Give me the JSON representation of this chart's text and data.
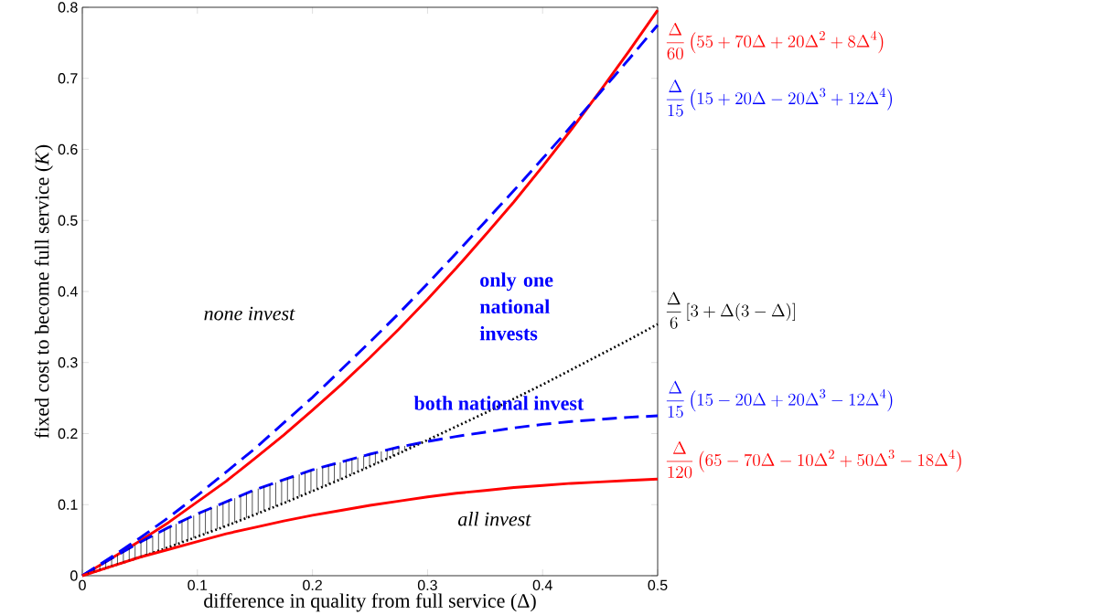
{
  "chart_data": {
    "type": "line",
    "xlabel": "difference in quality from full service (Δ)",
    "ylabel": "fixed cost to become full service (*K*)",
    "x": [
      0,
      0.025,
      0.05,
      0.075,
      0.1,
      0.125,
      0.15,
      0.175,
      0.2,
      0.225,
      0.25,
      0.275,
      0.3,
      0.325,
      0.35,
      0.375,
      0.4,
      0.425,
      0.45,
      0.475,
      0.5
    ],
    "series": [
      {
        "name": "\\frac{\\Delta}{60}\\left(55+70\\Delta+20\\Delta^2+8\\Delta^4\\right)",
        "color": "#ff0000",
        "line_style": "solid",
        "values": [
          0,
          0.024,
          0.049,
          0.075,
          0.104,
          0.133,
          0.165,
          0.198,
          0.233,
          0.269,
          0.307,
          0.347,
          0.389,
          0.433,
          0.479,
          0.526,
          0.576,
          0.628,
          0.682,
          0.738,
          0.796
        ]
      },
      {
        "name": "\\frac{\\Delta}{15}\\left(15+20\\Delta-20\\Delta^3+12\\Delta^4\\right)",
        "color": "#0000ff",
        "line_style": "dashed",
        "values": [
          0,
          0.026,
          0.053,
          0.082,
          0.113,
          0.146,
          0.179,
          0.215,
          0.251,
          0.29,
          0.329,
          0.369,
          0.411,
          0.454,
          0.498,
          0.542,
          0.587,
          0.633,
          0.68,
          0.727,
          0.775
        ]
      },
      {
        "name": "\\frac{\\Delta}{6}\\left[3+\\Delta(3-\\Delta)\\right]",
        "color": "#000000",
        "line_style": "dotted",
        "values": [
          0,
          0.013,
          0.026,
          0.04,
          0.055,
          0.07,
          0.086,
          0.102,
          0.119,
          0.136,
          0.154,
          0.172,
          0.191,
          0.21,
          0.229,
          0.249,
          0.269,
          0.29,
          0.311,
          0.332,
          0.354
        ]
      },
      {
        "name": "\\frac{\\Delta}{15}\\left(15-20\\Delta+20\\Delta^3-12\\Delta^4\\right)",
        "color": "#0000ff",
        "line_style": "dashed",
        "values": [
          0,
          0.024,
          0.047,
          0.068,
          0.087,
          0.104,
          0.121,
          0.135,
          0.149,
          0.16,
          0.171,
          0.181,
          0.189,
          0.196,
          0.202,
          0.208,
          0.213,
          0.217,
          0.22,
          0.223,
          0.225
        ]
      },
      {
        "name": "\\frac{\\Delta}{120}\\left(65-70\\Delta-10\\Delta^2+50\\Delta^3-18\\Delta^4\\right)",
        "color": "#ff0000",
        "line_style": "solid",
        "values": [
          0,
          0.013,
          0.026,
          0.037,
          0.048,
          0.059,
          0.068,
          0.077,
          0.085,
          0.092,
          0.099,
          0.105,
          0.111,
          0.116,
          0.12,
          0.124,
          0.127,
          0.13,
          0.132,
          0.134,
          0.136
        ]
      }
    ],
    "annotations": [
      "none invest",
      "only one national invests",
      "both national invest",
      "all invest"
    ],
    "xlim": [
      0,
      0.5
    ],
    "ylim": [
      0,
      0.8
    ],
    "xticks": [
      0,
      0.1,
      0.2,
      0.3,
      0.4,
      0.5
    ],
    "yticks": [
      0,
      0.1,
      0.2,
      0.3,
      0.4,
      0.5,
      0.6,
      0.7,
      0.8
    ]
  }
}
